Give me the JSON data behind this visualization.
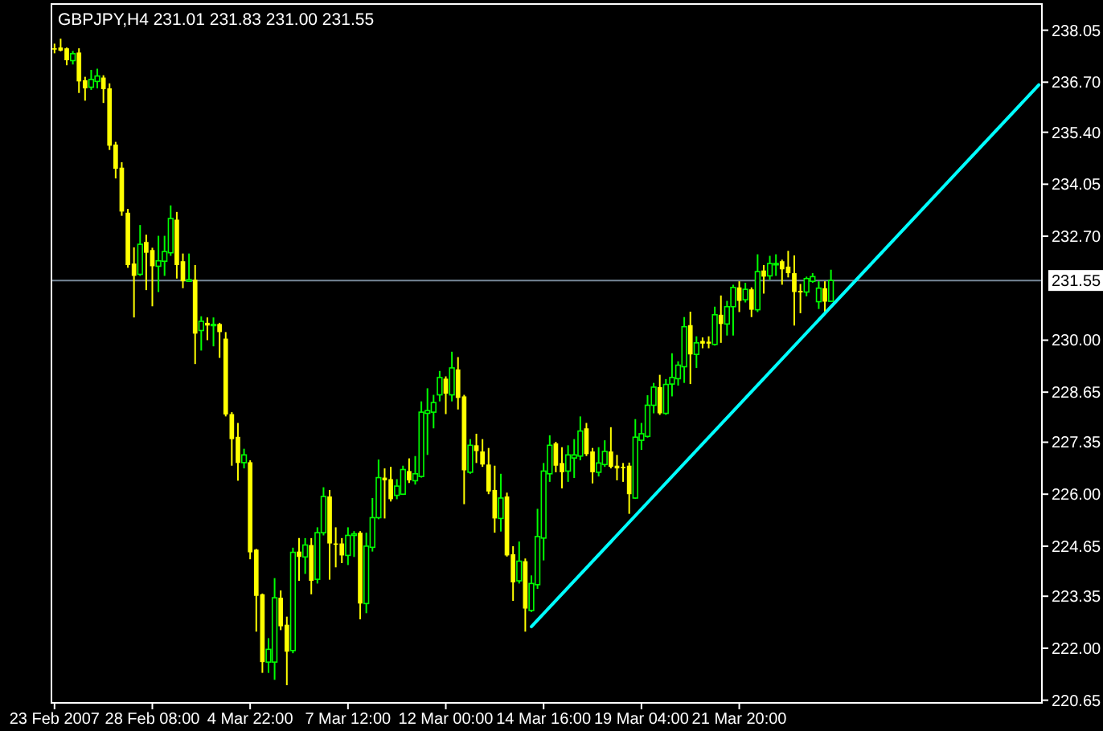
{
  "chart_data": {
    "type": "candlestick",
    "title": "GBPJPY,H4  231.01 231.83 231.00 231.55",
    "categories": [
      "23 Feb 2007",
      null,
      null,
      null,
      null,
      null,
      null,
      null,
      null,
      null,
      null,
      null,
      null,
      null,
      null,
      null,
      "28 Feb 08:00",
      null,
      null,
      null,
      null,
      null,
      null,
      null,
      null,
      null,
      null,
      null,
      null,
      null,
      null,
      null,
      "4 Mar 22:00",
      null,
      null,
      null,
      null,
      null,
      null,
      null,
      null,
      null,
      null,
      null,
      null,
      null,
      null,
      null,
      "7 Mar 12:00",
      null,
      null,
      null,
      null,
      null,
      null,
      null,
      null,
      null,
      null,
      null,
      null,
      null,
      null,
      null,
      "12 Mar 00:00",
      null,
      null,
      null,
      null,
      null,
      null,
      null,
      null,
      null,
      null,
      null,
      null,
      null,
      null,
      null,
      "14 Mar 16:00",
      null,
      null,
      null,
      null,
      null,
      null,
      null,
      null,
      null,
      null,
      null,
      null,
      null,
      null,
      null,
      "19 Mar 04:00",
      null,
      null,
      null,
      null,
      null,
      null,
      null,
      null,
      null,
      null,
      null,
      null,
      null,
      null,
      null,
      "21 Mar 20:00",
      null,
      null,
      null,
      null,
      null,
      null,
      null,
      null,
      null,
      null,
      null,
      null,
      null,
      null,
      null,
      null,
      null,
      null,
      null,
      null,
      null,
      null,
      null,
      null,
      null,
      null,
      null,
      null,
      null,
      null,
      null,
      null,
      null,
      null,
      null,
      null,
      null,
      null,
      null,
      null,
      null,
      null,
      null,
      null,
      null,
      null,
      null,
      null,
      null
    ],
    "ohlc": [
      [
        237.58,
        237.7,
        237.45,
        237.56
      ],
      [
        237.6,
        237.83,
        237.5,
        237.52
      ],
      [
        237.58,
        237.6,
        237.14,
        237.27
      ],
      [
        237.26,
        237.51,
        237.16,
        237.44
      ],
      [
        237.47,
        237.58,
        236.42,
        236.72
      ],
      [
        236.75,
        236.84,
        236.22,
        236.54
      ],
      [
        236.57,
        237.02,
        236.5,
        236.77
      ],
      [
        236.72,
        237.05,
        236.54,
        236.86
      ],
      [
        236.82,
        236.88,
        236.16,
        236.52
      ],
      [
        236.54,
        236.67,
        234.94,
        235.05
      ],
      [
        235.08,
        235.15,
        234.2,
        234.45
      ],
      [
        234.48,
        234.62,
        233.23,
        233.34
      ],
      [
        233.31,
        233.41,
        231.88,
        231.95
      ],
      [
        231.99,
        232.41,
        230.59,
        231.67
      ],
      [
        231.71,
        232.99,
        231.67,
        232.49
      ],
      [
        232.55,
        232.74,
        231.3,
        232.27
      ],
      [
        232.34,
        232.4,
        230.88,
        231.92
      ],
      [
        231.92,
        232.71,
        231.25,
        232.06
      ],
      [
        232.05,
        232.71,
        231.67,
        232.3
      ],
      [
        232.27,
        233.5,
        232.19,
        233.16
      ],
      [
        233.13,
        233.33,
        231.6,
        231.95
      ],
      [
        232.05,
        232.25,
        231.35,
        231.53
      ],
      [
        231.53,
        232.25,
        231.53,
        231.57
      ],
      [
        231.57,
        231.95,
        229.38,
        230.17
      ],
      [
        230.25,
        230.62,
        229.73,
        230.49
      ],
      [
        230.45,
        230.59,
        230.0,
        230.38
      ],
      [
        230.4,
        230.59,
        229.84,
        230.41
      ],
      [
        230.42,
        230.45,
        229.54,
        230.21
      ],
      [
        230.04,
        230.21,
        228.02,
        228.07
      ],
      [
        228.08,
        228.13,
        226.74,
        227.43
      ],
      [
        227.49,
        227.85,
        226.35,
        226.81
      ],
      [
        226.82,
        227.18,
        226.67,
        227.02
      ],
      [
        226.83,
        226.88,
        224.31,
        224.49
      ],
      [
        224.56,
        224.58,
        222.43,
        223.36
      ],
      [
        223.4,
        223.42,
        221.36,
        221.64
      ],
      [
        221.64,
        222.26,
        221.36,
        221.97
      ],
      [
        221.64,
        223.82,
        221.18,
        223.31
      ],
      [
        223.31,
        223.5,
        222.47,
        222.57
      ],
      [
        222.61,
        222.82,
        221.04,
        221.91
      ],
      [
        221.94,
        224.61,
        221.87,
        224.49
      ],
      [
        224.51,
        224.86,
        223.75,
        224.37
      ],
      [
        224.37,
        224.86,
        223.93,
        224.68
      ],
      [
        224.68,
        224.86,
        223.4,
        223.75
      ],
      [
        223.79,
        225.14,
        223.68,
        225.0
      ],
      [
        225.0,
        226.18,
        224.93,
        225.94
      ],
      [
        225.94,
        226.11,
        223.78,
        224.72
      ],
      [
        224.72,
        225.14,
        224.1,
        224.69
      ],
      [
        224.72,
        224.86,
        224.21,
        224.41
      ],
      [
        224.41,
        225.14,
        224.16,
        224.93
      ],
      [
        224.93,
        225.04,
        224.37,
        224.97
      ],
      [
        225.0,
        225.04,
        222.75,
        223.16
      ],
      [
        223.16,
        225.0,
        222.91,
        224.65
      ],
      [
        224.62,
        225.9,
        224.51,
        225.39
      ],
      [
        225.39,
        226.9,
        225.35,
        226.43
      ],
      [
        226.43,
        226.67,
        225.37,
        226.36
      ],
      [
        226.39,
        226.71,
        225.81,
        225.87
      ],
      [
        225.97,
        226.39,
        225.87,
        226.21
      ],
      [
        226.0,
        226.74,
        225.98,
        226.64
      ],
      [
        226.6,
        226.93,
        226.29,
        226.36
      ],
      [
        226.35,
        226.99,
        226.25,
        226.53
      ],
      [
        226.46,
        228.41,
        226.43,
        228.13
      ],
      [
        228.1,
        228.75,
        227.02,
        228.17
      ],
      [
        228.13,
        228.58,
        227.71,
        228.38
      ],
      [
        228.58,
        229.2,
        228.41,
        229.03
      ],
      [
        229.0,
        229.06,
        228.08,
        228.61
      ],
      [
        228.58,
        229.7,
        228.41,
        229.28
      ],
      [
        229.24,
        229.56,
        228.2,
        228.5
      ],
      [
        228.54,
        228.58,
        225.74,
        226.62
      ],
      [
        226.57,
        227.43,
        226.53,
        227.27
      ],
      [
        227.27,
        227.57,
        226.81,
        227.12
      ],
      [
        227.11,
        227.43,
        226.71,
        226.77
      ],
      [
        226.77,
        227.2,
        226.0,
        226.07
      ],
      [
        226.11,
        226.74,
        225.0,
        225.37
      ],
      [
        225.37,
        226.53,
        225.03,
        225.9
      ],
      [
        225.94,
        226.04,
        224.38,
        224.41
      ],
      [
        224.44,
        224.65,
        223.23,
        223.71
      ],
      [
        223.75,
        224.77,
        223.68,
        224.26
      ],
      [
        224.26,
        224.33,
        222.43,
        223.03
      ],
      [
        222.98,
        223.89,
        222.94,
        223.68
      ],
      [
        223.65,
        225.62,
        223.54,
        224.9
      ],
      [
        224.86,
        226.81,
        224.28,
        226.6
      ],
      [
        226.53,
        227.53,
        226.32,
        227.27
      ],
      [
        227.32,
        227.36,
        226.57,
        226.74
      ],
      [
        226.81,
        227.22,
        226.15,
        226.57
      ],
      [
        226.6,
        227.27,
        226.32,
        227.02
      ],
      [
        226.94,
        227.43,
        226.42,
        227.02
      ],
      [
        226.99,
        228.02,
        226.88,
        227.64
      ],
      [
        227.71,
        227.85,
        226.99,
        227.04
      ],
      [
        227.11,
        227.2,
        226.28,
        226.57
      ],
      [
        226.57,
        227.22,
        226.46,
        226.81
      ],
      [
        226.77,
        227.4,
        226.71,
        227.11
      ],
      [
        227.11,
        227.74,
        226.67,
        226.71
      ],
      [
        226.74,
        227.02,
        226.36,
        226.67
      ],
      [
        226.71,
        226.81,
        226.32,
        226.68
      ],
      [
        226.74,
        226.82,
        225.49,
        226.0
      ],
      [
        225.9,
        227.95,
        225.88,
        227.48
      ],
      [
        227.4,
        227.85,
        227.15,
        227.57
      ],
      [
        227.5,
        228.57,
        227.47,
        228.31
      ],
      [
        228.31,
        228.89,
        228.1,
        228.78
      ],
      [
        228.78,
        229.1,
        228.06,
        228.1
      ],
      [
        228.1,
        228.99,
        228.06,
        228.85
      ],
      [
        228.86,
        229.66,
        228.54,
        229.03
      ],
      [
        229.0,
        229.45,
        228.82,
        229.35
      ],
      [
        229.31,
        230.6,
        228.89,
        230.35
      ],
      [
        230.39,
        230.74,
        228.86,
        229.63
      ],
      [
        229.63,
        230.1,
        229.28,
        229.93
      ],
      [
        229.98,
        230.07,
        229.79,
        229.91
      ],
      [
        229.96,
        230.1,
        229.79,
        229.91
      ],
      [
        229.89,
        230.87,
        229.86,
        230.66
      ],
      [
        230.66,
        231.16,
        229.93,
        230.42
      ],
      [
        230.42,
        231.02,
        230.12,
        230.87
      ],
      [
        230.87,
        231.44,
        230.12,
        231.37
      ],
      [
        231.37,
        231.53,
        230.73,
        231.02
      ],
      [
        231.05,
        231.49,
        230.98,
        231.32
      ],
      [
        231.32,
        231.37,
        230.6,
        230.79
      ],
      [
        230.79,
        232.23,
        230.73,
        231.78
      ],
      [
        231.81,
        231.95,
        231.21,
        231.65
      ],
      [
        231.67,
        232.19,
        231.57,
        231.99
      ],
      [
        231.98,
        232.23,
        231.67,
        231.99
      ],
      [
        232.05,
        232.09,
        231.44,
        231.84
      ],
      [
        231.91,
        232.32,
        231.63,
        231.74
      ],
      [
        231.74,
        232.2,
        230.38,
        231.25
      ],
      [
        231.28,
        231.46,
        230.7,
        231.24
      ],
      [
        231.25,
        231.65,
        231.14,
        231.6
      ],
      [
        231.53,
        231.74,
        231.49,
        231.65
      ],
      [
        231.0,
        231.53,
        230.81,
        231.35
      ],
      [
        231.35,
        231.53,
        230.74,
        231.0
      ],
      [
        231.01,
        231.83,
        231.0,
        231.55
      ],
      null,
      null,
      null,
      null,
      null,
      null,
      null,
      null,
      null,
      null,
      null,
      null,
      null,
      null,
      null,
      null,
      null,
      null,
      null,
      null,
      null,
      null,
      null,
      null,
      null,
      null,
      null,
      null,
      null,
      null,
      null,
      null,
      null,
      null
    ],
    "colors": [
      "#ffff00",
      "#ffff00",
      "#ffff00",
      "#00ff00",
      "#ffff00",
      "#ffff00",
      "#00ff00",
      "#00ff00",
      "#ffff00",
      "#ffff00",
      "#ffff00",
      "#ffff00",
      "#ffff00",
      "#ffff00",
      "#00ff00",
      "#ffff00",
      "#ffff00",
      "#00ff00",
      "#00ff00",
      "#00ff00",
      "#ffff00",
      "#ffff00",
      "#00ff00",
      "#ffff00",
      "#00ff00",
      "#ffff00",
      "#00ff00",
      "#ffff00",
      "#ffff00",
      "#ffff00",
      "#ffff00",
      "#00ff00",
      "#ffff00",
      "#ffff00",
      "#ffff00",
      "#00ff00",
      "#00ff00",
      "#ffff00",
      "#ffff00",
      "#00ff00",
      "#ffff00",
      "#00ff00",
      "#ffff00",
      "#00ff00",
      "#00ff00",
      "#ffff00",
      "#ffff00",
      "#ffff00",
      "#00ff00",
      "#00ff00",
      "#ffff00",
      "#00ff00",
      "#00ff00",
      "#00ff00",
      "#ffff00",
      "#ffff00",
      "#00ff00",
      "#00ff00",
      "#ffff00",
      "#00ff00",
      "#00ff00",
      "#00ff00",
      "#00ff00",
      "#00ff00",
      "#ffff00",
      "#00ff00",
      "#ffff00",
      "#ffff00",
      "#00ff00",
      "#ffff00",
      "#ffff00",
      "#ffff00",
      "#ffff00",
      "#00ff00",
      "#ffff00",
      "#ffff00",
      "#00ff00",
      "#ffff00",
      "#00ff00",
      "#00ff00",
      "#00ff00",
      "#00ff00",
      "#ffff00",
      "#ffff00",
      "#00ff00",
      "#00ff00",
      "#00ff00",
      "#ffff00",
      "#ffff00",
      "#00ff00",
      "#00ff00",
      "#ffff00",
      "#ffff00",
      "#ffff00",
      "#ffff00",
      "#00ff00",
      "#00ff00",
      "#00ff00",
      "#00ff00",
      "#ffff00",
      "#00ff00",
      "#00ff00",
      "#00ff00",
      "#00ff00",
      "#ffff00",
      "#00ff00",
      "#ffff00",
      "#ffff00",
      "#00ff00",
      "#ffff00",
      "#00ff00",
      "#00ff00",
      "#ffff00",
      "#00ff00",
      "#ffff00",
      "#00ff00",
      "#ffff00",
      "#00ff00",
      "#00ff00",
      "#ffff00",
      "#ffff00",
      "#ffff00",
      "#ffff00",
      "#00ff00",
      "#00ff00",
      "#00ff00",
      "#ffff00",
      "#00ff00",
      null,
      null,
      null,
      null,
      null,
      null,
      null,
      null,
      null,
      null,
      null,
      null,
      null,
      null,
      null,
      null,
      null,
      null,
      null,
      null,
      null,
      null,
      null,
      null,
      null,
      null,
      null,
      null,
      null,
      null,
      null,
      null,
      null,
      null
    ],
    "series": [
      {
        "type": "line",
        "values": [
          null,
          null,
          null,
          null,
          null,
          null,
          null,
          null,
          null,
          null,
          null,
          null,
          null,
          null,
          null,
          null,
          null,
          null,
          null,
          null,
          null,
          null,
          null,
          null,
          null,
          null,
          null,
          null,
          null,
          null,
          null,
          null,
          null,
          null,
          null,
          null,
          null,
          null,
          null,
          null,
          null,
          null,
          null,
          null,
          null,
          null,
          null,
          null,
          null,
          null,
          null,
          null,
          null,
          null,
          null,
          null,
          null,
          null,
          null,
          null,
          null,
          null,
          null,
          null,
          null,
          null,
          null,
          null,
          null,
          null,
          null,
          null,
          null,
          null,
          null,
          null,
          null,
          null,
          222.56,
          null,
          null,
          null,
          null,
          null,
          null,
          null,
          null,
          null,
          null,
          null,
          null,
          null,
          null,
          null,
          null,
          null,
          null,
          null,
          null,
          null,
          null,
          null,
          null,
          null,
          null,
          null,
          null,
          null,
          null,
          null,
          null,
          null,
          null,
          null,
          null,
          null,
          null,
          null,
          null,
          null,
          null,
          null,
          null,
          null,
          null,
          null,
          null,
          null,
          null,
          null,
          null,
          null,
          null,
          null,
          null,
          null,
          null,
          null,
          null,
          null,
          null,
          null,
          null,
          null,
          null,
          null,
          null,
          null,
          null,
          null,
          null,
          null,
          null,
          null,
          null,
          null,
          null,
          null,
          null,
          null,
          null,
          236.63
        ],
        "color": "#00ffff"
      }
    ],
    "ref_lines": [
      {
        "axis": "y",
        "value": 231.55,
        "label": "231.55",
        "color": "#778899"
      }
    ],
    "ylim": [
      220.58,
      238.73
    ],
    "yticks": [
      238.05,
      {
        "value": 236.7,
        "label": "236.70"
      },
      {
        "value": 235.4,
        "label": "235.40"
      },
      234.05,
      {
        "value": 232.7,
        "label": "232.70"
      },
      {
        "value": 230,
        "label": "230.00"
      },
      228.65,
      227.35,
      {
        "value": 226,
        "label": "226.00"
      },
      224.65,
      223.35,
      {
        "value": 222,
        "label": "222.00"
      },
      220.65
    ],
    "grid": false
  }
}
